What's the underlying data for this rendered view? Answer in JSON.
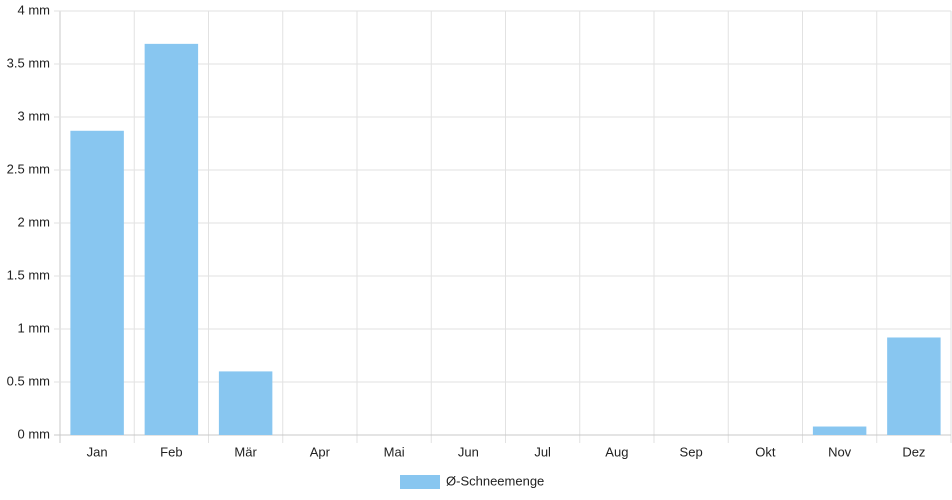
{
  "chart_data": {
    "type": "bar",
    "categories": [
      "Jan",
      "Feb",
      "Mär",
      "Apr",
      "Mai",
      "Jun",
      "Jul",
      "Aug",
      "Sep",
      "Okt",
      "Nov",
      "Dez"
    ],
    "series": [
      {
        "name": "Ø-Schneemenge",
        "color": "#88c6f0",
        "values": [
          2.87,
          3.69,
          0.6,
          0,
          0,
          0,
          0,
          0,
          0,
          0,
          0.08,
          0.92
        ]
      }
    ],
    "ylim": [
      0,
      4
    ],
    "yticks": [
      {
        "value": 0,
        "label": "0 mm"
      },
      {
        "value": 0.5,
        "label": "0.5 mm"
      },
      {
        "value": 1,
        "label": "1 mm"
      },
      {
        "value": 1.5,
        "label": "1.5 mm"
      },
      {
        "value": 2,
        "label": "2 mm"
      },
      {
        "value": 2.5,
        "label": "2.5 mm"
      },
      {
        "value": 3,
        "label": "3 mm"
      },
      {
        "value": 3.5,
        "label": "3.5 mm"
      },
      {
        "value": 4,
        "label": "4 mm"
      }
    ],
    "grid": true,
    "legend": "bottom"
  }
}
